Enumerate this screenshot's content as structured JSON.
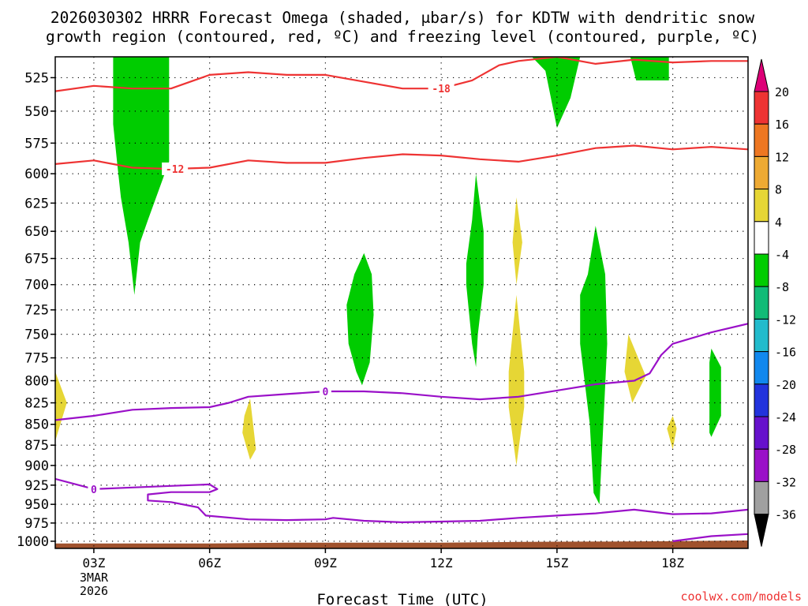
{
  "chart_data": {
    "type": "heatmap",
    "title": [
      "2026030302 HRRR Forecast Omega (shaded, μbar/s) for KDTW with dendritic snow",
      "growth region (contoured, red, ºC) and freezing level (contoured, purple, ºC)"
    ],
    "xlabel": "Forecast Time (UTC)",
    "ylabel": "",
    "credit": "coolwx.com/models",
    "x_ticks": [
      "03Z",
      "06Z",
      "09Z",
      "12Z",
      "15Z",
      "18Z"
    ],
    "x_tick_hours": [
      3,
      6,
      9,
      12,
      15,
      18
    ],
    "date_label": [
      "3MAR",
      "2026"
    ],
    "xlim_hours": [
      2.0,
      19.95
    ],
    "y_ticks": [
      525,
      550,
      575,
      600,
      625,
      650,
      675,
      700,
      725,
      750,
      775,
      800,
      825,
      850,
      875,
      900,
      925,
      950,
      975,
      1000
    ],
    "ylim_hpa": [
      1010,
      510
    ],
    "legend": {
      "labels": [
        "20",
        "16",
        "12",
        "8",
        "4",
        "-4",
        "-8",
        "-12",
        "-16",
        "-20",
        "-24",
        "-28",
        "-32",
        "-36"
      ],
      "colors": [
        "#dd0077",
        "#ee3333",
        "#ee7722",
        "#eeaa33",
        "#e6d635",
        "#ffffff",
        "#00cc00",
        "#11bb77",
        "#22bbcc",
        "#1188ee",
        "#2233dd",
        "#6611cc",
        "#9a10c8",
        "#a0a0a0",
        "#000000"
      ]
    },
    "omega_regions": [
      {
        "level": "-8",
        "color": "#00cc00",
        "points": [
          [
            3.5,
            510
          ],
          [
            4.95,
            510
          ],
          [
            4.95,
            590
          ],
          [
            4.4,
            640
          ],
          [
            4.2,
            660
          ],
          [
            4.05,
            710
          ],
          [
            3.9,
            660
          ],
          [
            3.7,
            620
          ],
          [
            3.6,
            590
          ],
          [
            3.5,
            560
          ]
        ]
      },
      {
        "level": "-8",
        "color": "#00cc00",
        "points": [
          [
            10.0,
            670
          ],
          [
            10.2,
            690
          ],
          [
            10.25,
            730
          ],
          [
            10.15,
            780
          ],
          [
            9.95,
            805
          ],
          [
            9.8,
            790
          ],
          [
            9.6,
            760
          ],
          [
            9.55,
            720
          ],
          [
            9.75,
            690
          ]
        ]
      },
      {
        "level": "-8",
        "color": "#00cc00",
        "points": [
          [
            12.9,
            600
          ],
          [
            13.1,
            650
          ],
          [
            13.1,
            700
          ],
          [
            12.95,
            750
          ],
          [
            12.9,
            785
          ],
          [
            12.8,
            760
          ],
          [
            12.65,
            700
          ],
          [
            12.65,
            680
          ],
          [
            12.8,
            640
          ]
        ]
      },
      {
        "level": "-8",
        "color": "#00cc00",
        "points": [
          [
            16.0,
            645
          ],
          [
            16.25,
            690
          ],
          [
            16.3,
            760
          ],
          [
            16.2,
            850
          ],
          [
            16.1,
            950
          ],
          [
            15.95,
            935
          ],
          [
            15.85,
            850
          ],
          [
            15.6,
            760
          ],
          [
            15.6,
            710
          ],
          [
            15.8,
            690
          ]
        ]
      },
      {
        "level": "-8",
        "color": "#00cc00",
        "points": [
          [
            19.0,
            765
          ],
          [
            19.25,
            785
          ],
          [
            19.25,
            840
          ],
          [
            19.0,
            865
          ],
          [
            18.95,
            860
          ],
          [
            18.95,
            780
          ]
        ]
      },
      {
        "level": "-8",
        "color": "#00cc00",
        "points": [
          [
            14.35,
            510
          ],
          [
            15.6,
            510
          ],
          [
            15.35,
            540
          ],
          [
            15.0,
            563
          ],
          [
            14.7,
            520
          ]
        ]
      },
      {
        "level": "-8",
        "color": "#00cc00",
        "points": [
          [
            16.9,
            510
          ],
          [
            17.9,
            510
          ],
          [
            17.9,
            527
          ],
          [
            17.05,
            527
          ]
        ]
      },
      {
        "level": "4",
        "color": "#e6d635",
        "points": [
          [
            2.0,
            790
          ],
          [
            2.3,
            825
          ],
          [
            2.0,
            870
          ],
          [
            1.8,
            825
          ]
        ]
      },
      {
        "level": "4",
        "color": "#e6d635",
        "points": [
          [
            7.05,
            820
          ],
          [
            7.2,
            880
          ],
          [
            7.05,
            893
          ],
          [
            6.85,
            860
          ],
          [
            6.9,
            840
          ]
        ]
      },
      {
        "level": "4",
        "color": "#e6d635",
        "points": [
          [
            13.95,
            620
          ],
          [
            14.1,
            660
          ],
          [
            13.95,
            700
          ],
          [
            13.85,
            660
          ]
        ]
      },
      {
        "level": "4",
        "color": "#e6d635",
        "points": [
          [
            13.95,
            710
          ],
          [
            14.15,
            790
          ],
          [
            14.15,
            830
          ],
          [
            13.95,
            900
          ],
          [
            13.75,
            830
          ],
          [
            13.75,
            790
          ]
        ]
      },
      {
        "level": "4",
        "color": "#e6d635",
        "points": [
          [
            16.85,
            750
          ],
          [
            17.3,
            795
          ],
          [
            16.95,
            825
          ],
          [
            16.75,
            790
          ]
        ]
      },
      {
        "level": "4",
        "color": "#e6d635",
        "points": [
          [
            18.0,
            840
          ],
          [
            18.1,
            855
          ],
          [
            18.0,
            880
          ],
          [
            17.85,
            855
          ]
        ]
      }
    ],
    "dgz_contours": [
      {
        "label": "-18",
        "label_hour": 12.0,
        "color": "#ee3333",
        "points": [
          [
            2.0,
            535
          ],
          [
            3.0,
            531
          ],
          [
            4.0,
            533
          ],
          [
            5.0,
            533
          ],
          [
            6.0,
            523
          ],
          [
            7.0,
            521
          ],
          [
            8.0,
            523
          ],
          [
            9.0,
            523
          ],
          [
            10.0,
            528
          ],
          [
            11.0,
            533
          ],
          [
            12.0,
            533
          ],
          [
            12.8,
            527
          ],
          [
            13.5,
            516
          ],
          [
            14.0,
            513
          ],
          [
            15.0,
            510
          ],
          [
            16.0,
            515
          ],
          [
            17.0,
            512
          ],
          [
            18.0,
            514
          ],
          [
            19.0,
            513
          ],
          [
            19.95,
            513
          ]
        ]
      },
      {
        "label": "-12",
        "label_hour": 5.1,
        "color": "#ee3333",
        "points": [
          [
            2.0,
            592
          ],
          [
            3.0,
            589
          ],
          [
            4.0,
            595
          ],
          [
            5.0,
            596
          ],
          [
            6.0,
            595
          ],
          [
            7.0,
            589
          ],
          [
            8.0,
            591
          ],
          [
            9.0,
            591
          ],
          [
            10.0,
            587
          ],
          [
            11.0,
            584
          ],
          [
            12.0,
            585
          ],
          [
            13.0,
            588
          ],
          [
            14.0,
            590
          ],
          [
            15.0,
            585
          ],
          [
            16.0,
            579
          ],
          [
            17.0,
            577
          ],
          [
            18.0,
            580
          ],
          [
            19.0,
            578
          ],
          [
            19.95,
            580
          ]
        ]
      }
    ],
    "freezing_contours": [
      {
        "label": "0",
        "label_hour": 9.0,
        "color": "#9a10c8",
        "points": [
          [
            2.0,
            845
          ],
          [
            3.0,
            840
          ],
          [
            4.0,
            833
          ],
          [
            5.0,
            831
          ],
          [
            6.0,
            830
          ],
          [
            6.5,
            825
          ],
          [
            7.0,
            818
          ],
          [
            8.0,
            815
          ],
          [
            9.0,
            812
          ],
          [
            10.0,
            812
          ],
          [
            11.0,
            814
          ],
          [
            12.0,
            818
          ],
          [
            13.0,
            821
          ],
          [
            14.0,
            818
          ],
          [
            15.0,
            811
          ],
          [
            16.0,
            804
          ],
          [
            17.0,
            800
          ],
          [
            17.4,
            792
          ],
          [
            17.7,
            772
          ],
          [
            18.0,
            760
          ],
          [
            19.0,
            748
          ],
          [
            19.95,
            739
          ]
        ]
      },
      {
        "label": "0",
        "label_hour": 3.0,
        "color": "#9a10c8",
        "points": [
          [
            2.0,
            917
          ],
          [
            3.0,
            930
          ],
          [
            4.0,
            928
          ],
          [
            5.0,
            926
          ],
          [
            6.0,
            924
          ],
          [
            6.2,
            930
          ],
          [
            6.0,
            934
          ],
          [
            5.0,
            934
          ],
          [
            4.4,
            937
          ],
          [
            4.4,
            945
          ],
          [
            5.0,
            947
          ],
          [
            5.7,
            954
          ],
          [
            5.9,
            965
          ],
          [
            7.0,
            970
          ],
          [
            8.0,
            971
          ],
          [
            9.0,
            970
          ],
          [
            9.2,
            968
          ],
          [
            10.0,
            972
          ],
          [
            11.0,
            974
          ],
          [
            12.0,
            973
          ],
          [
            13.0,
            972
          ],
          [
            14.0,
            968
          ],
          [
            15.0,
            965
          ],
          [
            16.0,
            962
          ],
          [
            17.0,
            957
          ],
          [
            18.0,
            963
          ],
          [
            19.0,
            962
          ],
          [
            19.95,
            957
          ]
        ]
      },
      {
        "label": "",
        "label_hour": null,
        "color": "#9a10c8",
        "points": [
          [
            18.0,
            1000
          ],
          [
            19.0,
            993
          ],
          [
            19.95,
            990
          ]
        ]
      }
    ],
    "terrain": {
      "color": "#a0522d",
      "points": [
        [
          2.0,
          1010
        ],
        [
          2.0,
          1003
        ],
        [
          6.0,
          1003
        ],
        [
          8.0,
          1002
        ],
        [
          12.0,
          1002
        ],
        [
          14.0,
          1001
        ],
        [
          18.0,
          1000
        ],
        [
          19.95,
          999
        ],
        [
          19.95,
          1010
        ]
      ]
    }
  }
}
